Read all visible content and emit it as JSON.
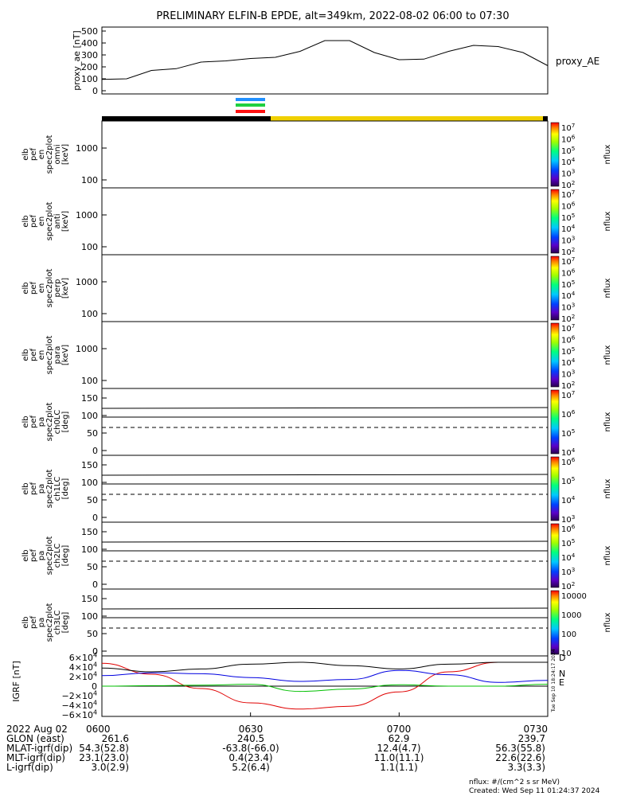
{
  "title": "PRELIMINARY ELFIN-B EPDE, alt=349km, 2022-08-02 06:00 to 07:30",
  "chart_data": [
    {
      "type": "line",
      "ylabel": "proxy_ae [nT]",
      "series_label": "proxy_AE",
      "yticks": [
        "500",
        "400",
        "300",
        "200",
        "100",
        "0"
      ],
      "x_minutes": [
        0,
        5,
        10,
        15,
        20,
        25,
        30,
        35,
        40,
        45,
        50,
        55,
        60,
        65,
        70,
        75,
        80,
        85,
        90
      ],
      "values": [
        95,
        100,
        170,
        185,
        240,
        250,
        270,
        280,
        330,
        420,
        420,
        320,
        260,
        265,
        330,
        380,
        370,
        320,
        210
      ],
      "ylim": [
        0,
        520
      ]
    },
    {
      "type": "heatmap",
      "label_lines": [
        "elb",
        "pef",
        "en",
        "spec2plot",
        "omni",
        "[keV]"
      ],
      "yticks": [
        "1000",
        "100"
      ],
      "colorbar": [
        "10^7",
        "10^6",
        "10^5",
        "10^4",
        "10^3",
        "10^2"
      ],
      "colorbar_label": "nflux"
    },
    {
      "type": "heatmap",
      "label_lines": [
        "elb",
        "pef",
        "en",
        "spec2plot",
        "anti",
        "[keV]"
      ],
      "yticks": [
        "1000",
        "100"
      ],
      "colorbar": [
        "10^7",
        "10^6",
        "10^5",
        "10^4",
        "10^3",
        "10^2"
      ],
      "colorbar_label": "nflux"
    },
    {
      "type": "heatmap",
      "label_lines": [
        "elb",
        "pef",
        "en",
        "spec2plot",
        "perp",
        "[keV]"
      ],
      "yticks": [
        "1000",
        "100"
      ],
      "colorbar": [
        "10^7",
        "10^6",
        "10^5",
        "10^4",
        "10^3",
        "10^2"
      ],
      "colorbar_label": "nflux"
    },
    {
      "type": "heatmap",
      "label_lines": [
        "elb",
        "pef",
        "en",
        "spec2plot",
        "para",
        "[keV]"
      ],
      "yticks": [
        "1000",
        "100"
      ],
      "colorbar": [
        "10^7",
        "10^6",
        "10^5",
        "10^4",
        "10^3",
        "10^2"
      ],
      "colorbar_label": "nflux"
    },
    {
      "type": "heatmap",
      "label_lines": [
        "elb",
        "pef",
        "pa",
        "spec2plot",
        "ch0LC",
        "[deg]"
      ],
      "yticks": [
        "150",
        "100",
        "50",
        "0"
      ],
      "colorbar": [
        "10^7",
        "10^6",
        "10^5",
        "10^4"
      ],
      "colorbar_label": "nflux"
    },
    {
      "type": "heatmap",
      "label_lines": [
        "elb",
        "pef",
        "pa",
        "spec2plot",
        "ch1LC",
        "[deg]"
      ],
      "yticks": [
        "150",
        "100",
        "50",
        "0"
      ],
      "colorbar": [
        "10^6",
        "10^5",
        "10^4",
        "10^3"
      ],
      "colorbar_label": "nflux"
    },
    {
      "type": "heatmap",
      "label_lines": [
        "elb",
        "pef",
        "pa",
        "spec2plot",
        "ch2LC",
        "[deg]"
      ],
      "yticks": [
        "150",
        "100",
        "50",
        "0"
      ],
      "colorbar": [
        "10^6",
        "10^5",
        "10^4",
        "10^3",
        "10^2"
      ],
      "colorbar_label": "nflux"
    },
    {
      "type": "heatmap",
      "label_lines": [
        "elb",
        "pef",
        "pa",
        "spec2plot",
        "ch3LC",
        "[deg]"
      ],
      "yticks": [
        "150",
        "100",
        "50",
        "0"
      ],
      "colorbar": [
        "10000",
        "1000",
        "100",
        "10"
      ],
      "colorbar_label": "nflux"
    },
    {
      "type": "line",
      "ylabel": "IGRF [nT]",
      "yticks": [
        "6×10^4",
        "4×10^4",
        "2×10^4",
        "0",
        "−2×10^4",
        "−4×10^4",
        "−6×10^4"
      ],
      "ylim": [
        -60000,
        60000
      ],
      "x_minutes": [
        0,
        10,
        20,
        30,
        40,
        50,
        60,
        70,
        80,
        90
      ],
      "series": [
        {
          "name": "D",
          "color": "#e00000",
          "values": [
            48000,
            25000,
            -5000,
            -35000,
            -48000,
            -42000,
            -12000,
            30000,
            50000,
            50000
          ]
        },
        {
          "name": "N",
          "color": "#0000e0",
          "values": [
            22000,
            28000,
            26000,
            18000,
            10000,
            14000,
            33000,
            24000,
            8000,
            12000
          ]
        },
        {
          "name": "E",
          "color": "#00c000",
          "values": [
            0,
            1000,
            2000,
            4000,
            -11000,
            -6000,
            3000,
            0,
            0,
            4000
          ]
        },
        {
          "name": "",
          "color": "#000000",
          "values": [
            38000,
            30000,
            36000,
            46000,
            50000,
            43000,
            36000,
            46000,
            50000,
            50000
          ]
        }
      ]
    }
  ],
  "x_tick_labels": [
    "0600",
    "0630",
    "0700",
    "0730"
  ],
  "side_stamp": "Tue Sep 10 18:24:17 2024",
  "footer": {
    "date": "2022 Aug 02",
    "rows": [
      {
        "label": "GLON (east)",
        "v": [
          "261.6",
          "240.5",
          "62.9",
          "239.7"
        ]
      },
      {
        "label": "MLAT-igrf(dip)",
        "v": [
          "54.3(52.8)",
          "-63.8(-66.0)",
          "12.4(4.7)",
          "56.3(55.8)"
        ]
      },
      {
        "label": "MLT-igrf(dip)",
        "v": [
          "23.1(23.0)",
          "0.4(23.4)",
          "11.0(11.1)",
          "22.6(22.6)"
        ]
      },
      {
        "label": "L-igrf(dip)",
        "v": [
          "3.0(2.9)",
          "5.2(6.4)",
          "1.1(1.1)",
          "3.3(3.3)"
        ]
      }
    ],
    "units": "nflux: #/(cm^2 s sr MeV)",
    "created": "Created: Wed Sep 11 01:24:37 2024"
  }
}
